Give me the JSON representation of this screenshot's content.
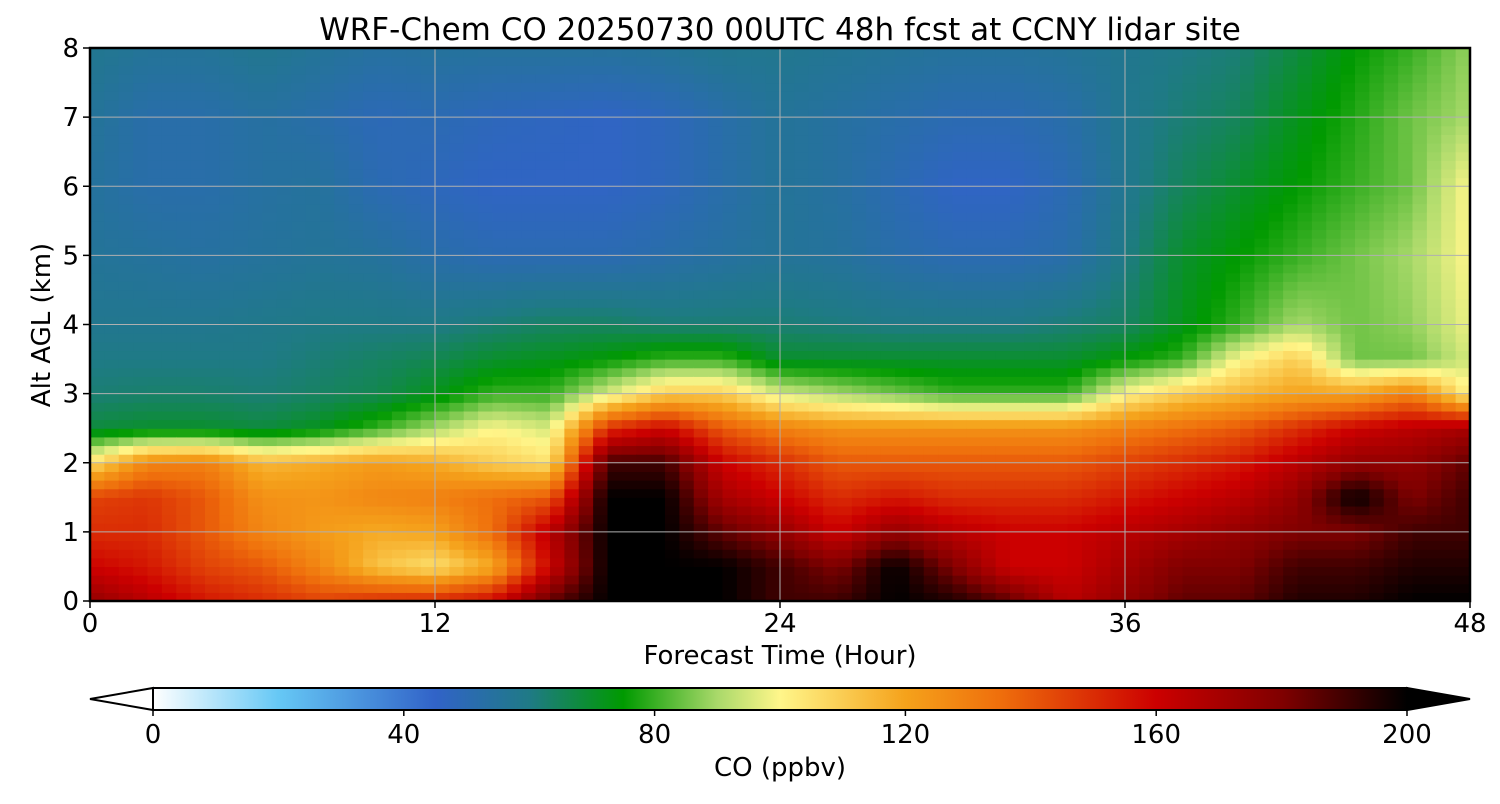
{
  "chart_data": {
    "type": "heatmap",
    "title": "WRF-Chem CO  20250730 00UTC 48h fcst at CCNY lidar site",
    "xlabel": "Forecast Time (Hour)",
    "ylabel": "Alt AGL (km)",
    "xlim": [
      0,
      48
    ],
    "ylim": [
      0,
      8
    ],
    "x_ticks": [
      0,
      12,
      24,
      36,
      48
    ],
    "y_ticks": [
      0,
      1,
      2,
      3,
      4,
      5,
      6,
      7,
      8
    ],
    "grid": true,
    "colorbar": {
      "label": "CO  (ppbv)",
      "orientation": "horizontal",
      "position": "bottom",
      "min": 0,
      "max": 200,
      "ticks": [
        0,
        40,
        80,
        120,
        160,
        200
      ],
      "extend": "both",
      "stops": [
        {
          "value": 0,
          "color": "#ffffff"
        },
        {
          "value": 20,
          "color": "#66c8f5"
        },
        {
          "value": 45,
          "color": "#3163c8"
        },
        {
          "value": 60,
          "color": "#1f7a86"
        },
        {
          "value": 75,
          "color": "#009a00"
        },
        {
          "value": 90,
          "color": "#a9d96a"
        },
        {
          "value": 100,
          "color": "#fff68a"
        },
        {
          "value": 120,
          "color": "#f5a21b"
        },
        {
          "value": 135,
          "color": "#ef6f0c"
        },
        {
          "value": 160,
          "color": "#cc0000"
        },
        {
          "value": 180,
          "color": "#800000"
        },
        {
          "value": 200,
          "color": "#000000"
        }
      ]
    },
    "grid_x_hours": [
      0,
      2,
      4,
      6,
      8,
      10,
      12,
      14,
      16,
      18,
      20,
      22,
      24,
      26,
      28,
      30,
      32,
      34,
      36,
      38,
      40,
      42,
      44,
      46,
      48
    ],
    "grid_z_km": [
      0,
      0.5,
      1,
      1.5,
      2,
      2.5,
      3,
      3.5,
      4,
      5,
      6,
      7,
      8
    ],
    "values": [
      [
        175,
        165,
        155,
        150,
        145,
        150,
        152,
        158,
        185,
        200,
        200,
        200,
        190,
        190,
        200,
        195,
        185,
        165,
        175,
        185,
        185,
        195,
        195,
        200,
        200
      ],
      [
        160,
        155,
        145,
        140,
        128,
        112,
        105,
        118,
        160,
        200,
        200,
        200,
        190,
        180,
        200,
        180,
        160,
        160,
        170,
        180,
        180,
        190,
        190,
        195,
        195
      ],
      [
        150,
        150,
        140,
        128,
        122,
        118,
        120,
        135,
        165,
        200,
        200,
        185,
        175,
        160,
        175,
        165,
        160,
        160,
        165,
        170,
        175,
        180,
        180,
        190,
        190
      ],
      [
        145,
        148,
        140,
        125,
        124,
        128,
        130,
        135,
        140,
        200,
        200,
        170,
        160,
        150,
        155,
        150,
        150,
        150,
        155,
        160,
        165,
        175,
        200,
        180,
        190
      ],
      [
        105,
        128,
        130,
        115,
        118,
        122,
        118,
        110,
        105,
        190,
        190,
        160,
        150,
        140,
        140,
        140,
        140,
        140,
        145,
        150,
        155,
        165,
        175,
        175,
        185
      ],
      [
        68,
        70,
        70,
        68,
        72,
        80,
        90,
        100,
        95,
        150,
        160,
        140,
        130,
        125,
        125,
        125,
        125,
        125,
        130,
        135,
        140,
        150,
        160,
        165,
        170
      ],
      [
        62,
        63,
        63,
        62,
        64,
        66,
        72,
        80,
        80,
        95,
        110,
        110,
        95,
        90,
        85,
        80,
        80,
        80,
        100,
        110,
        115,
        120,
        120,
        130,
        100
      ],
      [
        60,
        60,
        60,
        60,
        62,
        64,
        66,
        70,
        72,
        75,
        80,
        80,
        70,
        70,
        70,
        70,
        70,
        70,
        75,
        80,
        100,
        110,
        85,
        85,
        95
      ],
      [
        58,
        58,
        58,
        59,
        60,
        60,
        60,
        62,
        64,
        64,
        62,
        62,
        62,
        61,
        60,
        60,
        60,
        62,
        64,
        72,
        80,
        90,
        85,
        88,
        98
      ],
      [
        56,
        55,
        54,
        55,
        56,
        55,
        52,
        50,
        50,
        50,
        52,
        54,
        56,
        55,
        52,
        50,
        50,
        52,
        60,
        70,
        75,
        80,
        85,
        90,
        100
      ],
      [
        55,
        52,
        52,
        54,
        55,
        50,
        48,
        46,
        46,
        46,
        48,
        52,
        56,
        54,
        50,
        46,
        46,
        50,
        58,
        65,
        70,
        75,
        80,
        85,
        100
      ],
      [
        56,
        52,
        52,
        54,
        52,
        49,
        50,
        48,
        47,
        46,
        48,
        52,
        56,
        54,
        52,
        50,
        50,
        52,
        58,
        62,
        65,
        72,
        78,
        85,
        90
      ],
      [
        58,
        56,
        56,
        58,
        56,
        54,
        55,
        55,
        55,
        55,
        56,
        58,
        58,
        57,
        56,
        55,
        55,
        56,
        58,
        60,
        62,
        68,
        75,
        80,
        88
      ]
    ]
  }
}
